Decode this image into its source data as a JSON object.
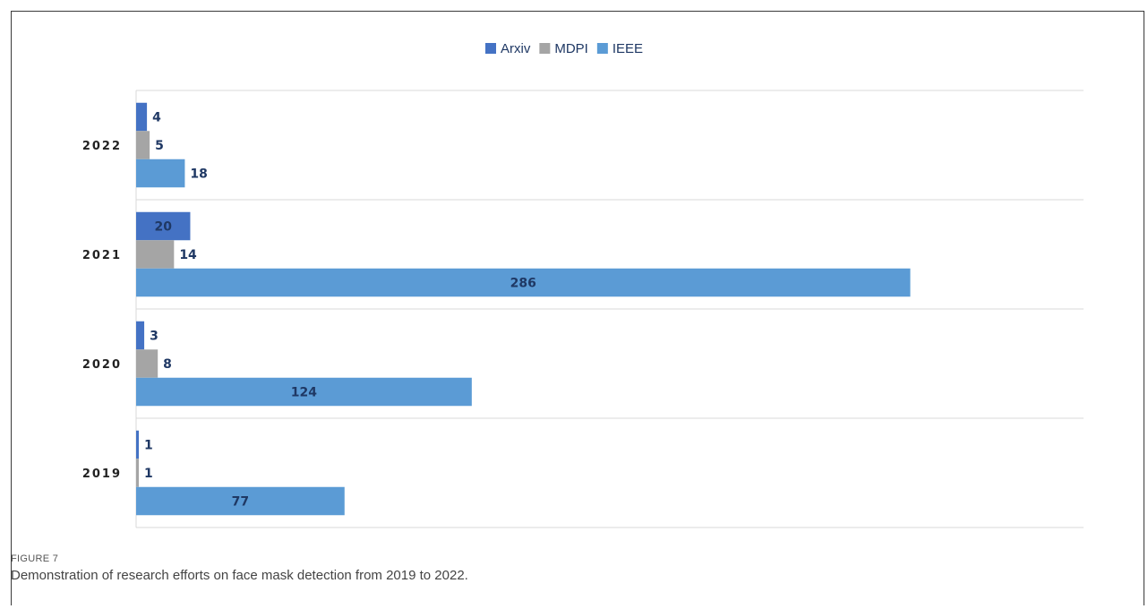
{
  "figure": {
    "label": "FIGURE 7",
    "caption": "Demonstration of research efforts on face mask detection from 2019 to 2022."
  },
  "chart_data": {
    "type": "bar",
    "orientation": "horizontal",
    "categories": [
      "2022",
      "2021",
      "2020",
      "2019"
    ],
    "series": [
      {
        "name": "Arxiv",
        "values": [
          4,
          20,
          3,
          1
        ],
        "color": "#4472c4"
      },
      {
        "name": "MDPI",
        "values": [
          5,
          14,
          8,
          1
        ],
        "color": "#a5a5a5"
      },
      {
        "name": "IEEE",
        "values": [
          18,
          286,
          124,
          77
        ],
        "color": "#5b9bd5"
      }
    ],
    "xlim": [
      0,
      350
    ],
    "grid": true,
    "legend_position": "top-center",
    "label_color": "#1f3864"
  }
}
